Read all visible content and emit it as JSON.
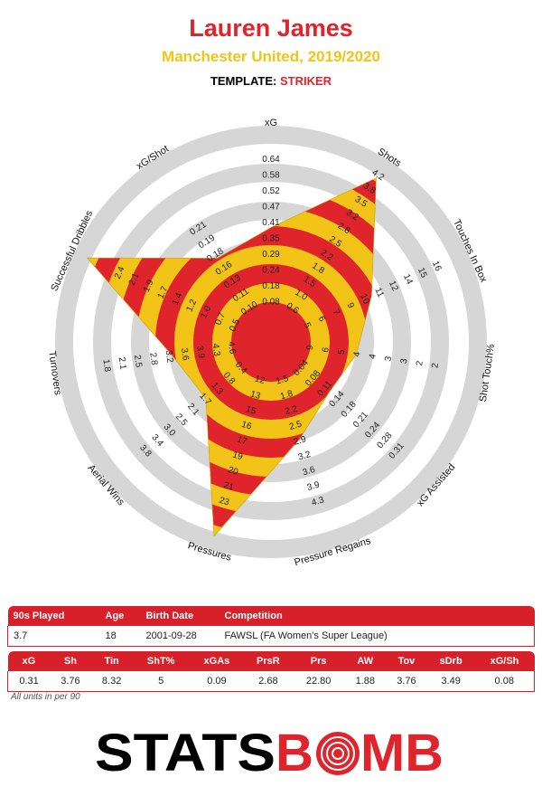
{
  "header": {
    "player_name": "Lauren James",
    "team_season": "Manchester United, 2019/2020",
    "template_label": "TEMPLATE:",
    "template_value": "STRIKER"
  },
  "colors": {
    "red": "#e0242c",
    "yellow": "#f2c418",
    "ring_grey": "#d6d6d6"
  },
  "chart_data": {
    "type": "radar",
    "axes": [
      {
        "label": "xG",
        "ticks": [
          "0.08",
          "0.18",
          "0.24",
          "0.29",
          "0.35",
          "0.41",
          "0.47",
          "0.52",
          "0.58",
          "0.64"
        ]
      },
      {
        "label": "Shots",
        "ticks": [
          "0.6",
          "1.0",
          "1.5",
          "1.8",
          "2.2",
          "2.5",
          "2.8",
          "3.2",
          "3.5",
          "3.8",
          "4.2"
        ]
      },
      {
        "label": "Touches In Box",
        "ticks": [
          "5",
          "6",
          "7",
          "9",
          "10",
          "11",
          "12",
          "14",
          "15",
          "16"
        ]
      },
      {
        "label": "Shot Touch%",
        "ticks": [
          "9",
          "6",
          "5",
          "4",
          "4",
          "3",
          "3",
          "2",
          "2"
        ]
      },
      {
        "label": "xG Assisted",
        "ticks": [
          "0.04",
          "0.08",
          "0.11",
          "0.14",
          "0.18",
          "0.21",
          "0.24",
          "0.28",
          "0.31"
        ]
      },
      {
        "label": "Pressure Regains",
        "ticks": [
          "1.5",
          "1.8",
          "2.2",
          "2.5",
          "2.9",
          "3.2",
          "3.6",
          "3.9",
          "4.3"
        ]
      },
      {
        "label": "Pressures",
        "ticks": [
          "12",
          "13",
          "15",
          "16",
          "17",
          "19",
          "20",
          "21",
          "23"
        ]
      },
      {
        "label": "Aerial Wins",
        "ticks": [
          "0.4",
          "0.8",
          "1.3",
          "1.7",
          "2.1",
          "2.5",
          "3.0",
          "3.4",
          "3.8"
        ]
      },
      {
        "label": "Turnovers",
        "ticks": [
          "4.6",
          "4.3",
          "3.9",
          "3.6",
          "3.2",
          "2.8",
          "2.5",
          "2.1",
          "1.8"
        ]
      },
      {
        "label": "Successful Dribbles",
        "ticks": [
          "0.5",
          "0.7",
          "1.0",
          "1.2",
          "1.4",
          "1.7",
          "1.9",
          "2.1",
          "2.4"
        ]
      },
      {
        "label": "xG/Shot",
        "ticks": [
          "0.10",
          "0.11",
          "0.13",
          "0.16",
          "0.18",
          "0.19",
          "0.21"
        ]
      }
    ],
    "scaled_values": [
      0.5,
      0.93,
      0.48,
      0.35,
      0.3,
      0.43,
      0.97,
      0.35,
      0.42,
      0.97,
      0.42
    ],
    "band_colors": [
      "#e0242c",
      "#f2c418"
    ]
  },
  "info_table": {
    "headers": [
      "90s Played",
      "Age",
      "Birth Date",
      "Competition"
    ],
    "values": [
      "3.7",
      "18",
      "2001-09-28",
      "FAWSL (FA Women's Super League)"
    ]
  },
  "stats_table": {
    "headers": [
      "xG",
      "Sh",
      "Tin",
      "ShT%",
      "xGAs",
      "PrsR",
      "Prs",
      "AW",
      "Tov",
      "sDrb",
      "xG/Sh"
    ],
    "values": [
      "0.31",
      "3.76",
      "8.32",
      "5",
      "0.09",
      "2.68",
      "22.80",
      "1.88",
      "3.76",
      "3.49",
      "0.08"
    ]
  },
  "footnote": "All units in per 90",
  "logo": {
    "part1": "STATS",
    "part2": "B",
    "part3": "MB",
    "target_icon": "target-o-icon"
  }
}
